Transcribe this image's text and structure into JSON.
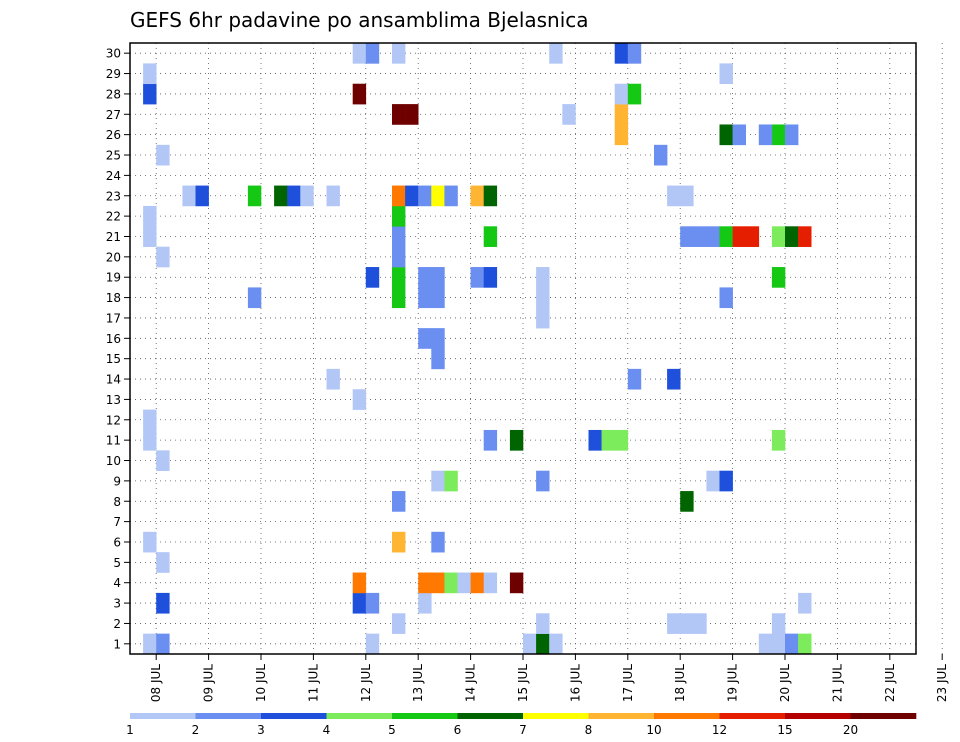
{
  "chart_data": {
    "type": "heatmap",
    "title": "GEFS 6hr padavine po ansamblima Bjelasnica",
    "xlabel": "",
    "ylabel": "",
    "x_ticks": [
      "08 JUL",
      "09 JUL",
      "10 JUL",
      "11 JUL",
      "12 JUL",
      "13 JUL",
      "14 JUL",
      "15 JUL",
      "16 JUL",
      "17 JUL",
      "18 JUL",
      "19 JUL",
      "20 JUL",
      "21 JUL",
      "22 JUL",
      "23 JUL"
    ],
    "xlim": [
      0,
      60
    ],
    "y_ticks": [
      1,
      2,
      3,
      4,
      5,
      6,
      7,
      8,
      9,
      10,
      11,
      12,
      13,
      14,
      15,
      16,
      17,
      18,
      19,
      20,
      21,
      22,
      23,
      24,
      25,
      26,
      27,
      28,
      29,
      30
    ],
    "ylim": [
      0.5,
      30.5
    ],
    "grid": true,
    "x_step_hours": 6,
    "colorbar": {
      "orientation": "horizontal",
      "position": "bottom",
      "labels": [
        "1",
        "2",
        "3",
        "4",
        "5",
        "6",
        "7",
        "8",
        "10",
        "12",
        "15",
        "20"
      ],
      "colors": [
        "#b3c7f7",
        "#6b8ff0",
        "#1e50dc",
        "#7cec5c",
        "#14c814",
        "#006400",
        "#ffff00",
        "#ffb432",
        "#ff7800",
        "#e61e00",
        "#b40000",
        "#6e0000"
      ]
    },
    "cells": [
      [
        1,
        1,
        1
      ],
      [
        2,
        1,
        2
      ],
      [
        2,
        3,
        3
      ],
      [
        2,
        5,
        1
      ],
      [
        1,
        6,
        1
      ],
      [
        2,
        10,
        1
      ],
      [
        1,
        11,
        1
      ],
      [
        1,
        12,
        1
      ],
      [
        2,
        20,
        1
      ],
      [
        1,
        21,
        1
      ],
      [
        1,
        22,
        1
      ],
      [
        2,
        25,
        1
      ],
      [
        1,
        28,
        3
      ],
      [
        1,
        29,
        1
      ],
      [
        4,
        23,
        1
      ],
      [
        5,
        23,
        3
      ],
      [
        9,
        18,
        2
      ],
      [
        9,
        23,
        5
      ],
      [
        11,
        23,
        6
      ],
      [
        12,
        23,
        3
      ],
      [
        13,
        23,
        1
      ],
      [
        15,
        14,
        1
      ],
      [
        15,
        23,
        1
      ],
      [
        17,
        3,
        3
      ],
      [
        18,
        3,
        2
      ],
      [
        17,
        4,
        10
      ],
      [
        17,
        13,
        1
      ],
      [
        18,
        1,
        1
      ],
      [
        18,
        19,
        3
      ],
      [
        17,
        28,
        20
      ],
      [
        17,
        30,
        1
      ],
      [
        18,
        30,
        2
      ],
      [
        20,
        2,
        1
      ],
      [
        20,
        6,
        9
      ],
      [
        20,
        8,
        2
      ],
      [
        20,
        18,
        5
      ],
      [
        20,
        19,
        5
      ],
      [
        20,
        20,
        2
      ],
      [
        20,
        21,
        2
      ],
      [
        20,
        22,
        5
      ],
      [
        20,
        23,
        10
      ],
      [
        20,
        27,
        20
      ],
      [
        20,
        30,
        1
      ],
      [
        21,
        23,
        3
      ],
      [
        21,
        27,
        20
      ],
      [
        22,
        3,
        1
      ],
      [
        22,
        4,
        10
      ],
      [
        22,
        16,
        2
      ],
      [
        22,
        18,
        2
      ],
      [
        22,
        19,
        2
      ],
      [
        22,
        23,
        2
      ],
      [
        23,
        4,
        10
      ],
      [
        23,
        6,
        2
      ],
      [
        23,
        9,
        1
      ],
      [
        23,
        15,
        2
      ],
      [
        23,
        16,
        2
      ],
      [
        23,
        18,
        2
      ],
      [
        23,
        19,
        2
      ],
      [
        23,
        23,
        7
      ],
      [
        24,
        4,
        4
      ],
      [
        24,
        9,
        4
      ],
      [
        24,
        23,
        2
      ],
      [
        25,
        4,
        1
      ],
      [
        26,
        4,
        10
      ],
      [
        26,
        19,
        2
      ],
      [
        26,
        23,
        8
      ],
      [
        27,
        4,
        1
      ],
      [
        27,
        11,
        2
      ],
      [
        27,
        19,
        3
      ],
      [
        27,
        21,
        5
      ],
      [
        27,
        23,
        6
      ],
      [
        29,
        4,
        20
      ],
      [
        29,
        11,
        6
      ],
      [
        30,
        1,
        1
      ],
      [
        31,
        1,
        6
      ],
      [
        31,
        2,
        1
      ],
      [
        31,
        9,
        2
      ],
      [
        31,
        17,
        1
      ],
      [
        31,
        18,
        1
      ],
      [
        31,
        19,
        1
      ],
      [
        32,
        1,
        1
      ],
      [
        32,
        30,
        1
      ],
      [
        33,
        27,
        1
      ],
      [
        35,
        11,
        3
      ],
      [
        36,
        11,
        4
      ],
      [
        37,
        11,
        4
      ],
      [
        37,
        27,
        8
      ],
      [
        37,
        26,
        8
      ],
      [
        37,
        28,
        1
      ],
      [
        37,
        30,
        3
      ],
      [
        38,
        14,
        2
      ],
      [
        38,
        28,
        5
      ],
      [
        38,
        30,
        2
      ],
      [
        40,
        25,
        2
      ],
      [
        41,
        14,
        3
      ],
      [
        41,
        2,
        1
      ],
      [
        42,
        2,
        1
      ],
      [
        43,
        2,
        1
      ],
      [
        41,
        23,
        1
      ],
      [
        42,
        23,
        1
      ],
      [
        42,
        8,
        6
      ],
      [
        42,
        21,
        2
      ],
      [
        43,
        21,
        2
      ],
      [
        44,
        21,
        2
      ],
      [
        44,
        9,
        1
      ],
      [
        45,
        9,
        3
      ],
      [
        45,
        18,
        2
      ],
      [
        45,
        26,
        6
      ],
      [
        45,
        29,
        1
      ],
      [
        45,
        21,
        5
      ],
      [
        46,
        21,
        12
      ],
      [
        47,
        21,
        12
      ],
      [
        46,
        26,
        2
      ],
      [
        48,
        1,
        1
      ],
      [
        49,
        1,
        1
      ],
      [
        50,
        1,
        2
      ],
      [
        51,
        1,
        4
      ],
      [
        49,
        2,
        1
      ],
      [
        49,
        11,
        4
      ],
      [
        49,
        19,
        5
      ],
      [
        49,
        21,
        4
      ],
      [
        49,
        26,
        5
      ],
      [
        50,
        21,
        6
      ],
      [
        50,
        26,
        2
      ],
      [
        51,
        3,
        1
      ],
      [
        51,
        21,
        12
      ],
      [
        48,
        26,
        2
      ]
    ]
  }
}
